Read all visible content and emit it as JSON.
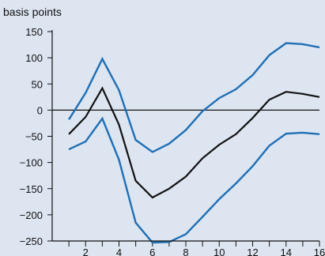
{
  "chart_data": {
    "type": "line",
    "title": "",
    "xlabel": "",
    "ylabel": "basis points",
    "x": [
      1,
      2,
      3,
      4,
      5,
      6,
      7,
      8,
      9,
      10,
      11,
      12,
      13,
      14,
      15,
      16
    ],
    "x_ticks": [
      2,
      4,
      6,
      8,
      10,
      12,
      14,
      16
    ],
    "y_ticks": [
      150,
      100,
      50,
      0,
      -50,
      -100,
      -150,
      -200,
      -250
    ],
    "xlim": [
      0,
      16
    ],
    "ylim": [
      -250,
      150
    ],
    "zero_line": true,
    "grid": false,
    "legend": "none",
    "series": [
      {
        "role": "upper band",
        "color": "#1f6fb5",
        "values": [
          -18,
          33,
          98,
          38,
          -57,
          -80,
          -64,
          -38,
          -2,
          23,
          40,
          67,
          105,
          128,
          126,
          120
        ]
      },
      {
        "role": "estimate",
        "color": "#111111",
        "values": [
          -46,
          -13,
          42,
          -28,
          -135,
          -167,
          -150,
          -127,
          -92,
          -66,
          -46,
          -15,
          20,
          35,
          31,
          25
        ]
      },
      {
        "role": "lower band",
        "color": "#1f6fb5",
        "values": [
          -75,
          -60,
          -16,
          -95,
          -215,
          -253,
          -252,
          -237,
          -204,
          -170,
          -140,
          -107,
          -68,
          -45,
          -43,
          -46
        ]
      }
    ]
  }
}
